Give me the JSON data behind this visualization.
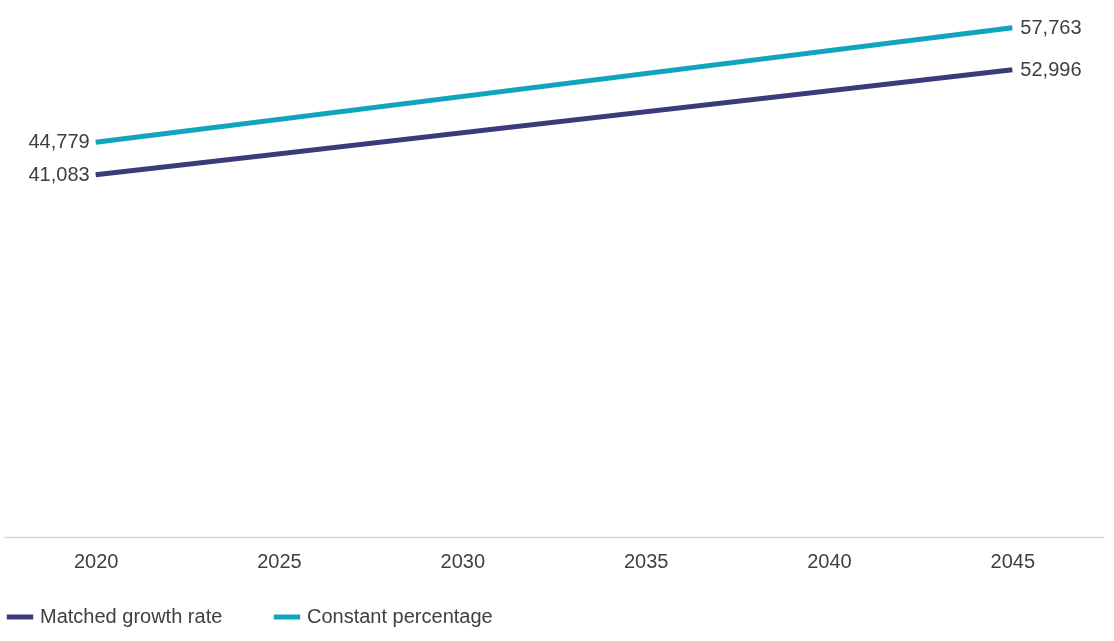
{
  "chart_data": {
    "type": "line",
    "x": [
      2020,
      2045
    ],
    "xlim": [
      2017.5,
      2047.5
    ],
    "xticks": [
      2020,
      2025,
      2030,
      2035,
      2040,
      2045
    ],
    "tick_labels": "x",
    "legend": "bottom",
    "grid": false,
    "series": [
      {
        "name": "Matched growth rate",
        "color": "#3b3a7a",
        "values": [
          41083,
          52996
        ],
        "value_labels": [
          "41,083",
          "52,996"
        ]
      },
      {
        "name": "Constant percentage",
        "color": "#12a4bf",
        "values": [
          44779,
          57763
        ],
        "value_labels": [
          "44,779",
          "57,763"
        ]
      }
    ]
  }
}
